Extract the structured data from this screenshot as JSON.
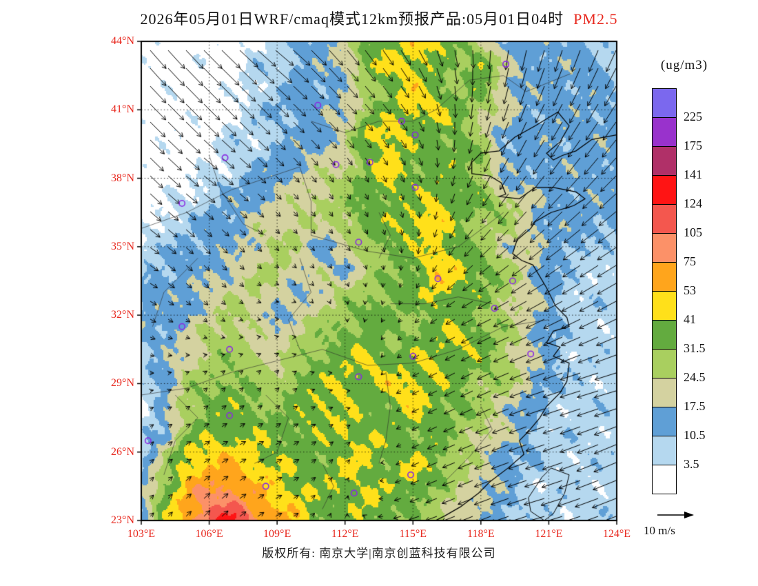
{
  "title": {
    "text": "2026年05月01日WRF/cmaq模式12km预报产品:05月01日04时",
    "highlight": "PM2.5"
  },
  "footer": {
    "text": "版权所有: 南京大学|南京创蓝科技有限公司"
  },
  "legend": {
    "title": "(ug/m3)",
    "boundary_labels": [
      "225",
      "175",
      "141",
      "124",
      "105",
      "75",
      "53",
      "41",
      "31.5",
      "24.5",
      "17.5",
      "10.5",
      "3.5"
    ],
    "colors_top_to_bottom": [
      "#7B68EE",
      "#9932CC",
      "#B03068",
      "#FF1414",
      "#F4574E",
      "#FC9168",
      "#FFA51C",
      "#FFE01A",
      "#63AB3F",
      "#A9CF5F",
      "#D4D2A0",
      "#5F9FD6",
      "#B5D8EF",
      "#FFFFFF"
    ]
  },
  "axes": {
    "lat_labels": [
      "44°N",
      "41°N",
      "38°N",
      "35°N",
      "32°N",
      "29°N",
      "26°N",
      "23°N"
    ],
    "lon_labels": [
      "103°E",
      "106°E",
      "109°E",
      "112°E",
      "115°E",
      "118°E",
      "121°E",
      "124°E"
    ],
    "label_color": "#E8281E"
  },
  "wind_legend": {
    "label": "10 m/s",
    "reference_speed_ms": 10
  },
  "chart_data": {
    "type": "heatmap",
    "quantity": "PM2.5 concentration forecast",
    "units": "ug/m3",
    "lon_range": [
      103,
      124
    ],
    "lat_range": [
      23,
      44
    ],
    "level_thresholds_ugm3": [
      3.5,
      10.5,
      17.5,
      24.5,
      31.5,
      41,
      53,
      75,
      105,
      124,
      141,
      175,
      225
    ],
    "level_colors_low_to_high": [
      "#FFFFFF",
      "#B5D8EF",
      "#5F9FD6",
      "#D4D2A0",
      "#A9CF5F",
      "#63AB3F",
      "#FFE01A",
      "#FFA51C",
      "#FC9168",
      "#F4574E",
      "#FF1414",
      "#B03068",
      "#9932CC",
      "#7B68EE"
    ],
    "grid_note": "PM2.5 field encoded as color-level indices (hex 0-d), 22x22 grid, rows north(44N) to south(23N), columns west(103E) to east(124E), 1 degree spacing",
    "grid_levels": [
      "0000001223556653222211",
      "0000011223566546322221",
      "0000011222456545322221",
      "0000012223456654322222",
      "0000111223665553222222",
      "0000112233565555222222",
      "0001122334565554222222",
      "0011223344555655432222",
      "0112233434556654432222",
      "1122234323455654332211",
      "1222334332445665432111",
      "2223343234455655432111",
      "2223432344554554432111",
      "2234433445545565432111",
      "1234443455655655432111",
      "1244544556566554432111",
      "0245554565556554321111",
      "1245555556555544321111",
      "1366665555655543221111",
      "2467766556556543211111",
      "2578876655655433211111",
      "2579a87655554432211111"
    ],
    "wind": {
      "lon_start": 103,
      "dlon": 3,
      "lat_start": 44,
      "dlat": -3,
      "u_ms": [
        [
          5,
          6,
          6,
          4,
          3,
          0,
          -2,
          -3
        ],
        [
          5,
          5,
          4,
          3,
          2,
          -1,
          -3,
          -4
        ],
        [
          4,
          4,
          2,
          1,
          1,
          -2,
          -4,
          -5
        ],
        [
          3,
          2,
          1,
          1,
          0,
          -3,
          -5,
          -6
        ],
        [
          2,
          1,
          1,
          0,
          -1,
          -4,
          -6,
          -6
        ],
        [
          1,
          1,
          1,
          1,
          -2,
          -4,
          -6,
          -7
        ],
        [
          1,
          2,
          2,
          1,
          -2,
          -5,
          -6,
          -7
        ],
        [
          1,
          2,
          2,
          0,
          -3,
          -5,
          -7,
          -8
        ]
      ],
      "v_ms": [
        [
          -6,
          -6,
          -5,
          -5,
          -5,
          -6,
          -7,
          -7
        ],
        [
          -5,
          -5,
          -4,
          -3,
          -3,
          -5,
          -6,
          -6
        ],
        [
          -4,
          -3,
          -2,
          -2,
          -2,
          -4,
          -5,
          -5
        ],
        [
          -2,
          -2,
          -1,
          -1,
          -2,
          -3,
          -4,
          -4
        ],
        [
          -1,
          -1,
          0,
          -1,
          -1,
          -2,
          -3,
          -3
        ],
        [
          0,
          1,
          1,
          0,
          -1,
          -2,
          -2,
          -2
        ],
        [
          1,
          1,
          1,
          1,
          -1,
          -2,
          -2,
          -3
        ],
        [
          1,
          2,
          1,
          1,
          -1,
          -2,
          -2,
          -3
        ]
      ]
    },
    "station_markers_lonlat": [
      [
        119.1,
        43.0
      ],
      [
        110.8,
        41.2
      ],
      [
        114.5,
        40.5
      ],
      [
        115.1,
        39.9
      ],
      [
        106.7,
        38.9
      ],
      [
        111.6,
        38.6
      ],
      [
        113.1,
        38.7
      ],
      [
        115.1,
        37.6
      ],
      [
        104.8,
        36.9
      ],
      [
        112.6,
        35.2
      ],
      [
        116.1,
        33.6
      ],
      [
        119.4,
        33.5
      ],
      [
        118.6,
        32.3
      ],
      [
        104.8,
        31.5
      ],
      [
        106.9,
        30.5
      ],
      [
        115.0,
        30.2
      ],
      [
        120.2,
        30.3
      ],
      [
        112.6,
        29.3
      ],
      [
        103.3,
        26.5
      ],
      [
        106.9,
        27.6
      ],
      [
        108.5,
        24.5
      ],
      [
        112.4,
        24.2
      ],
      [
        114.9,
        25.0
      ]
    ],
    "marker_color": "#8A2BE2"
  }
}
